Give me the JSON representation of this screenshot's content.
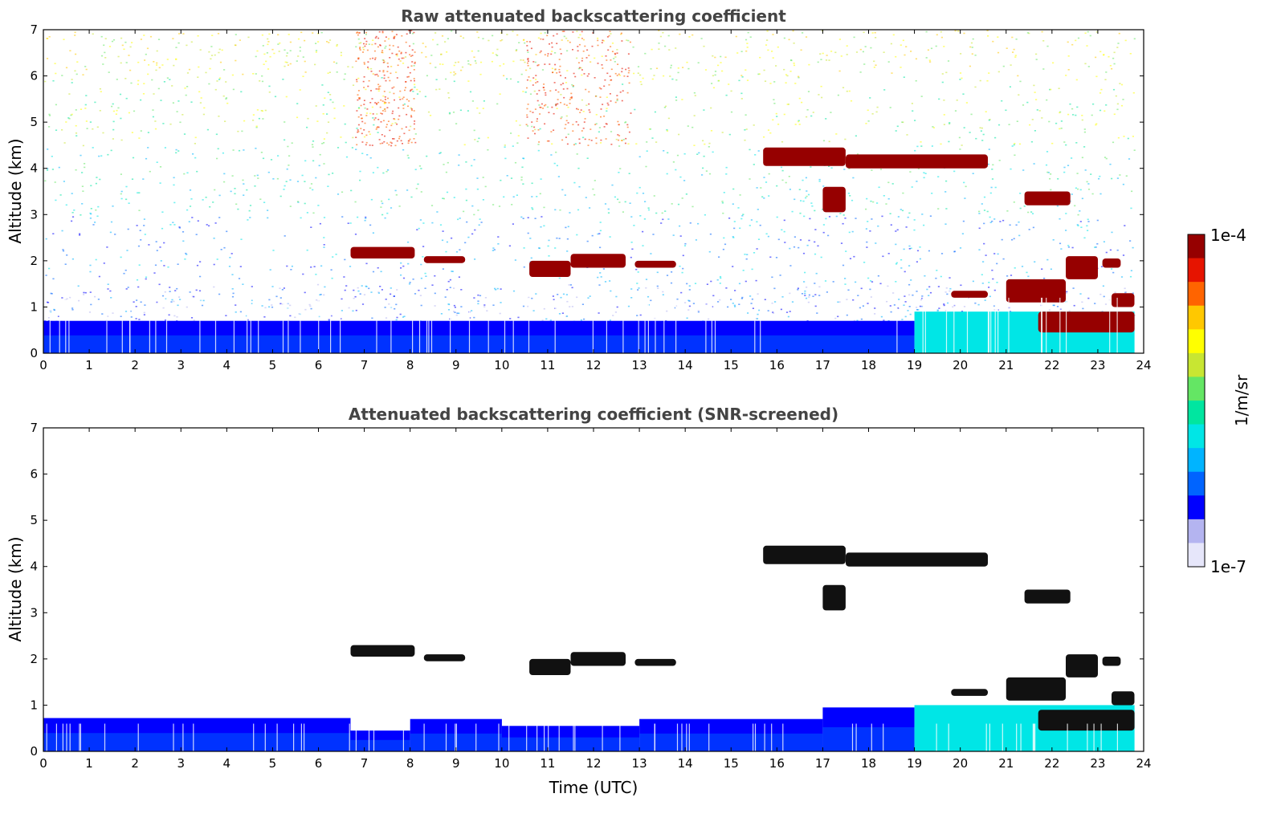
{
  "figure": {
    "colorbar": {
      "max_label": "1e-4",
      "min_label": "1e-7",
      "unit_label": "1/m/sr",
      "colors": [
        "#e6e6fa",
        "#b4b4f0",
        "#0000ff",
        "#0064ff",
        "#00b4ff",
        "#00e6e6",
        "#00e6a0",
        "#64e664",
        "#c8e632",
        "#ffff00",
        "#ffc800",
        "#ff6400",
        "#e61400",
        "#960000"
      ]
    }
  },
  "chart_data": [
    {
      "type": "heatmap",
      "id": "raw",
      "title": "Raw attenuated backscattering coefficient",
      "xlabel": "",
      "ylabel": "Altitude (km)",
      "xlim": [
        0,
        24
      ],
      "ylim": [
        0,
        7
      ],
      "x_ticks": [
        "0",
        "1",
        "2",
        "3",
        "4",
        "5",
        "6",
        "7",
        "8",
        "9",
        "10",
        "11",
        "12",
        "13",
        "14",
        "15",
        "16",
        "17",
        "18",
        "19",
        "20",
        "21",
        "22",
        "23",
        "24"
      ],
      "y_ticks": [
        "0",
        "1",
        "2",
        "3",
        "4",
        "5",
        "6",
        "7"
      ],
      "data_end_hour": 23.8,
      "noise_background": true,
      "boundary_layer": [
        {
          "x0": 0,
          "x1": 19.0,
          "top_km": 0.7,
          "level": "low"
        },
        {
          "x0": 19.0,
          "x1": 23.8,
          "top_km": 0.9,
          "level": "mid"
        }
      ],
      "cloud_layers": [
        {
          "x0": 6.7,
          "x1": 8.1,
          "base_km": 2.05,
          "top_km": 2.3
        },
        {
          "x0": 8.3,
          "x1": 9.2,
          "base_km": 1.95,
          "top_km": 2.1
        },
        {
          "x0": 10.6,
          "x1": 11.5,
          "base_km": 1.65,
          "top_km": 2.0
        },
        {
          "x0": 11.5,
          "x1": 12.7,
          "base_km": 1.85,
          "top_km": 2.15
        },
        {
          "x0": 12.9,
          "x1": 13.8,
          "base_km": 1.85,
          "top_km": 2.0
        },
        {
          "x0": 15.7,
          "x1": 17.5,
          "base_km": 4.05,
          "top_km": 4.45
        },
        {
          "x0": 17.5,
          "x1": 20.6,
          "base_km": 4.0,
          "top_km": 4.3
        },
        {
          "x0": 17.0,
          "x1": 17.5,
          "base_km": 3.05,
          "top_km": 3.6
        },
        {
          "x0": 21.4,
          "x1": 22.4,
          "base_km": 3.2,
          "top_km": 3.5
        },
        {
          "x0": 19.8,
          "x1": 20.6,
          "base_km": 1.2,
          "top_km": 1.35
        },
        {
          "x0": 21.0,
          "x1": 22.3,
          "base_km": 1.1,
          "top_km": 1.6
        },
        {
          "x0": 22.3,
          "x1": 23.0,
          "base_km": 1.6,
          "top_km": 2.1
        },
        {
          "x0": 23.1,
          "x1": 23.5,
          "base_km": 1.85,
          "top_km": 2.05
        },
        {
          "x0": 23.3,
          "x1": 23.8,
          "base_km": 1.0,
          "top_km": 1.3
        },
        {
          "x0": 21.7,
          "x1": 23.8,
          "base_km": 0.45,
          "top_km": 0.9
        }
      ]
    },
    {
      "type": "heatmap",
      "id": "screened",
      "title": "Attenuated backscattering coefficient (SNR-screened)",
      "xlabel": "Time (UTC)",
      "ylabel": "Altitude (km)",
      "xlim": [
        0,
        24
      ],
      "ylim": [
        0,
        7
      ],
      "x_ticks": [
        "0",
        "1",
        "2",
        "3",
        "4",
        "5",
        "6",
        "7",
        "8",
        "9",
        "10",
        "11",
        "12",
        "13",
        "14",
        "15",
        "16",
        "17",
        "18",
        "19",
        "20",
        "21",
        "22",
        "23",
        "24"
      ],
      "y_ticks": [
        "0",
        "1",
        "2",
        "3",
        "4",
        "5",
        "6",
        "7"
      ],
      "data_end_hour": 23.8,
      "noise_background": false,
      "boundary_layer": [
        {
          "x0": 0,
          "x1": 6.7,
          "top_km": 0.72,
          "level": "low"
        },
        {
          "x0": 6.7,
          "x1": 8.0,
          "top_km": 0.45,
          "level": "low"
        },
        {
          "x0": 8.0,
          "x1": 10.0,
          "top_km": 0.7,
          "level": "low"
        },
        {
          "x0": 10.0,
          "x1": 13.0,
          "top_km": 0.55,
          "level": "low"
        },
        {
          "x0": 13.0,
          "x1": 17.0,
          "top_km": 0.7,
          "level": "low"
        },
        {
          "x0": 17.0,
          "x1": 19.0,
          "top_km": 0.95,
          "level": "low"
        },
        {
          "x0": 19.0,
          "x1": 23.8,
          "top_km": 1.0,
          "level": "mid"
        }
      ],
      "cloud_layers": [
        {
          "x0": 6.7,
          "x1": 8.1,
          "base_km": 2.05,
          "top_km": 2.3
        },
        {
          "x0": 8.3,
          "x1": 9.2,
          "base_km": 1.95,
          "top_km": 2.1
        },
        {
          "x0": 10.6,
          "x1": 11.5,
          "base_km": 1.65,
          "top_km": 2.0
        },
        {
          "x0": 11.5,
          "x1": 12.7,
          "base_km": 1.85,
          "top_km": 2.15
        },
        {
          "x0": 12.9,
          "x1": 13.8,
          "base_km": 1.85,
          "top_km": 2.0
        },
        {
          "x0": 15.7,
          "x1": 17.5,
          "base_km": 4.05,
          "top_km": 4.45
        },
        {
          "x0": 17.5,
          "x1": 20.6,
          "base_km": 4.0,
          "top_km": 4.3
        },
        {
          "x0": 17.0,
          "x1": 17.5,
          "base_km": 3.05,
          "top_km": 3.6
        },
        {
          "x0": 21.4,
          "x1": 22.4,
          "base_km": 3.2,
          "top_km": 3.5
        },
        {
          "x0": 19.8,
          "x1": 20.6,
          "base_km": 1.2,
          "top_km": 1.35
        },
        {
          "x0": 21.0,
          "x1": 22.3,
          "base_km": 1.1,
          "top_km": 1.6
        },
        {
          "x0": 22.3,
          "x1": 23.0,
          "base_km": 1.6,
          "top_km": 2.1
        },
        {
          "x0": 23.1,
          "x1": 23.5,
          "base_km": 1.85,
          "top_km": 2.05
        },
        {
          "x0": 23.3,
          "x1": 23.8,
          "base_km": 1.0,
          "top_km": 1.3
        },
        {
          "x0": 21.7,
          "x1": 23.8,
          "base_km": 0.45,
          "top_km": 0.9
        }
      ]
    }
  ]
}
